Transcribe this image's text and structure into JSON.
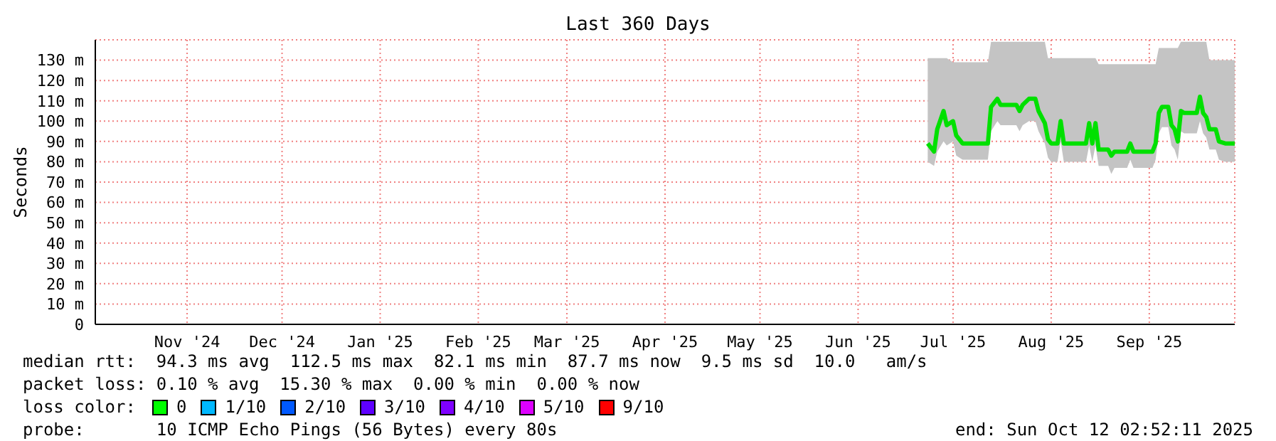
{
  "chart_data": {
    "type": "line",
    "title": "Last 360 Days",
    "ylabel": "Seconds",
    "x": [
      "2025-07-07",
      "2025-07-09",
      "2025-07-10",
      "2025-07-12",
      "2025-07-13",
      "2025-07-15",
      "2025-07-16",
      "2025-07-18",
      "2025-07-26",
      "2025-07-27",
      "2025-07-29",
      "2025-07-30",
      "2025-08-04",
      "2025-08-05",
      "2025-08-06",
      "2025-08-08",
      "2025-08-10",
      "2025-08-11",
      "2025-08-13",
      "2025-08-14",
      "2025-08-15",
      "2025-08-17",
      "2025-08-18",
      "2025-08-19",
      "2025-08-26",
      "2025-08-27",
      "2025-08-28",
      "2025-08-29",
      "2025-08-30",
      "2025-09-02",
      "2025-09-03",
      "2025-09-04",
      "2025-09-08",
      "2025-09-09",
      "2025-09-10",
      "2025-09-16",
      "2025-09-17",
      "2025-09-18",
      "2025-09-19",
      "2025-09-21",
      "2025-09-22",
      "2025-09-23",
      "2025-09-24",
      "2025-09-25",
      "2025-09-26",
      "2025-09-30",
      "2025-10-01",
      "2025-10-02",
      "2025-10-03",
      "2025-10-04",
      "2025-10-06",
      "2025-10-07",
      "2025-10-09",
      "2025-10-12"
    ],
    "series": [
      {
        "color": "#00e000",
        "values": [
          89,
          85,
          96,
          105,
          98,
          100,
          93,
          89,
          89,
          107,
          111,
          108,
          108,
          105,
          108,
          111,
          111,
          105,
          99,
          91,
          89,
          89,
          100,
          89,
          89,
          99,
          89,
          99,
          86,
          86,
          83,
          85,
          85,
          89,
          85,
          85,
          89,
          104,
          107,
          107,
          98,
          96,
          90,
          105,
          104,
          104,
          112,
          104,
          102,
          96,
          96,
          90,
          89,
          89
        ],
        "lower": [
          80,
          78,
          85,
          90,
          88,
          90,
          83,
          81,
          81,
          95,
          100,
          98,
          98,
          95,
          98,
          100,
          100,
          95,
          89,
          82,
          80,
          80,
          90,
          80,
          80,
          88,
          80,
          88,
          78,
          78,
          74,
          77,
          77,
          81,
          77,
          77,
          81,
          94,
          97,
          97,
          88,
          86,
          81,
          95,
          94,
          94,
          100,
          94,
          92,
          86,
          86,
          81,
          80,
          80
        ],
        "upper": [
          131,
          131,
          131,
          131,
          131,
          129,
          129,
          129,
          129,
          139,
          139,
          139,
          139,
          139,
          139,
          139,
          139,
          139,
          139,
          131,
          131,
          131,
          131,
          131,
          131,
          131,
          131,
          131,
          128,
          128,
          128,
          128,
          128,
          128,
          128,
          128,
          128,
          136,
          136,
          136,
          136,
          136,
          136,
          139,
          139,
          139,
          139,
          139,
          139,
          130,
          130,
          130,
          130,
          130
        ]
      }
    ],
    "xlim": [
      "2024-10-17",
      "2025-10-12"
    ],
    "xticks": [
      {
        "value": "2024-11-15",
        "label": "Nov '24"
      },
      {
        "value": "2024-12-15",
        "label": "Dec '24"
      },
      {
        "value": "2025-01-15",
        "label": "Jan '25"
      },
      {
        "value": "2025-02-15",
        "label": "Feb '25"
      },
      {
        "value": "2025-03-15",
        "label": "Mar '25"
      },
      {
        "value": "2025-04-15",
        "label": "Apr '25"
      },
      {
        "value": "2025-05-15",
        "label": "May '25"
      },
      {
        "value": "2025-06-15",
        "label": "Jun '25"
      },
      {
        "value": "2025-07-15",
        "label": "Jul '25"
      },
      {
        "value": "2025-08-15",
        "label": "Aug '25"
      },
      {
        "value": "2025-09-15",
        "label": "Sep '25"
      }
    ],
    "ylim": [
      0,
      140
    ],
    "yticks": [
      0,
      {
        "value": 10,
        "label": "10 m"
      },
      {
        "value": 20,
        "label": "20 m"
      },
      {
        "value": 30,
        "label": "30 m"
      },
      {
        "value": 40,
        "label": "40 m"
      },
      {
        "value": 50,
        "label": "50 m"
      },
      {
        "value": 60,
        "label": "60 m"
      },
      {
        "value": 70,
        "label": "70 m"
      },
      {
        "value": 80,
        "label": "80 m"
      },
      {
        "value": 90,
        "label": "90 m"
      },
      {
        "value": 100,
        "label": "100 m"
      },
      {
        "value": 110,
        "label": "110 m"
      },
      {
        "value": 120,
        "label": "120 m"
      },
      {
        "value": 130,
        "label": "130 m"
      }
    ],
    "grid": true,
    "marker": "none",
    "line_style": "solid",
    "annotations": [
      "median rtt:  94.3 ms avg  112.5 ms max  82.1 ms min  87.7 ms now  9.5 ms sd  10.0   am/s",
      "packet loss: 0.10 % avg  15.30 % max  0.00 % min  0.00 % now",
      "loss color:",
      "0",
      "1/10",
      "2/10",
      "3/10",
      "4/10",
      "5/10",
      "9/10",
      "probe:       10 ICMP Echo Pings (56 Bytes) every 80s",
      "end: Sun Oct 12 02:52:11 2025"
    ]
  }
}
